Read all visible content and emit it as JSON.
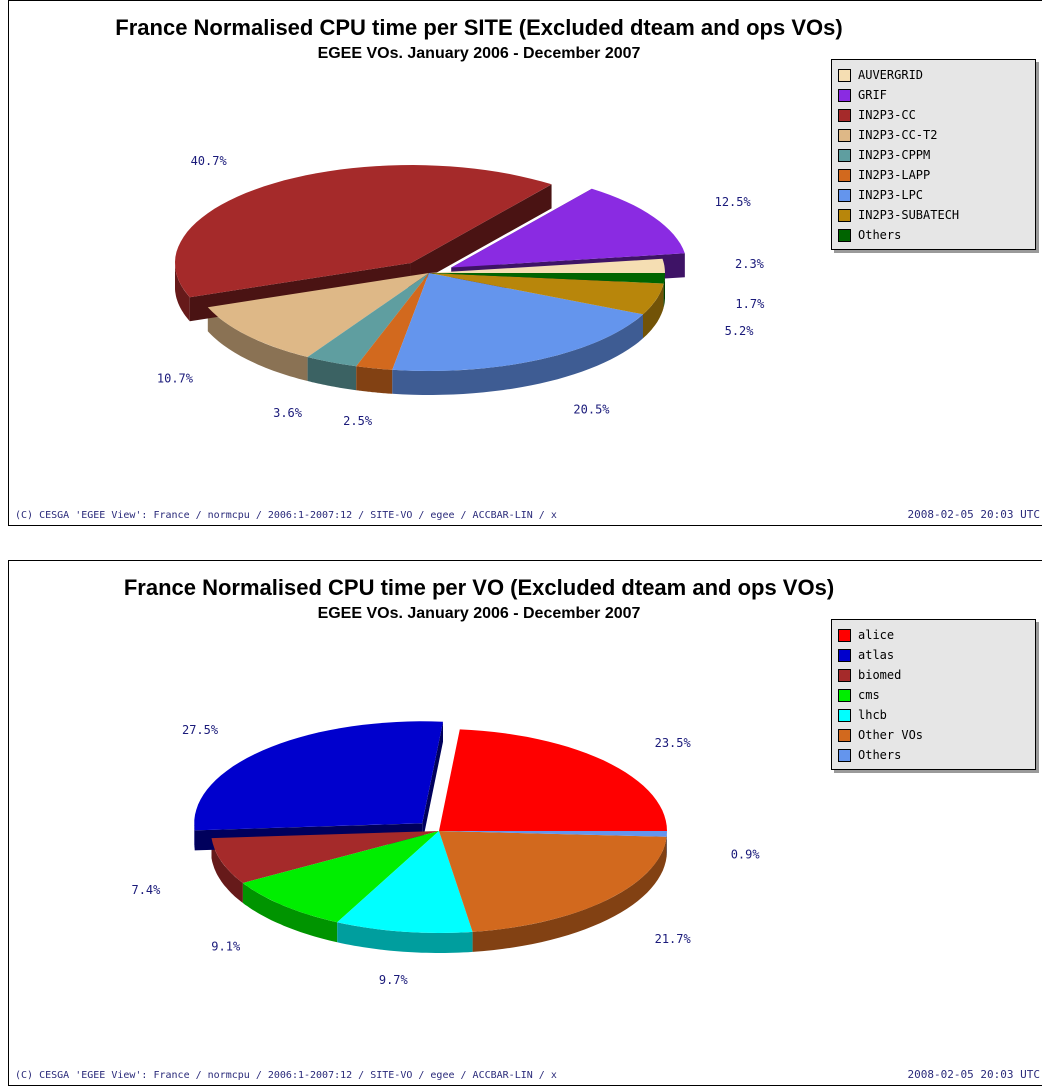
{
  "chart_data": [
    {
      "type": "pie",
      "title": "France Normalised CPU time per SITE (Excluded dteam and ops VOs)",
      "subtitle": "EGEE VOs. January 2006 - December 2007",
      "legend_position": "top-right",
      "slices": [
        {
          "label": "AUVERGRID",
          "value": 2.3,
          "pct_label": "2.3%",
          "color": "#f5deb3"
        },
        {
          "label": "GRIF",
          "value": 12.5,
          "pct_label": "12.5%",
          "color": "#8a2be2"
        },
        {
          "label": "IN2P3-CC",
          "value": 40.7,
          "pct_label": "40.7%",
          "color": "#a52a2a"
        },
        {
          "label": "IN2P3-CC-T2",
          "value": 10.7,
          "pct_label": "10.7%",
          "color": "#deb887"
        },
        {
          "label": "IN2P3-CPPM",
          "value": 3.6,
          "pct_label": "3.6%",
          "color": "#5f9ea0"
        },
        {
          "label": "IN2P3-LAPP",
          "value": 2.5,
          "pct_label": "2.5%",
          "color": "#d2691e"
        },
        {
          "label": "IN2P3-LPC",
          "value": 20.5,
          "pct_label": "20.5%",
          "color": "#6495ed"
        },
        {
          "label": "IN2P3-SUBATECH",
          "value": 5.2,
          "pct_label": "5.2%",
          "color": "#b8860b"
        },
        {
          "label": "Others",
          "value": 1.7,
          "pct_label": "1.7%",
          "color": "#006400"
        }
      ],
      "footer_left": "(C) CESGA 'EGEE View': France / normcpu / 2006:1-2007:12 / SITE-VO / egee / ACCBAR-LIN / x",
      "footer_right": "2008-02-05 20:03 UTC"
    },
    {
      "type": "pie",
      "title": "France Normalised CPU time per VO (Excluded dteam and ops VOs)",
      "subtitle": "EGEE VOs. January 2006 - December 2007",
      "legend_position": "top-right",
      "slices": [
        {
          "label": "alice",
          "value": 23.5,
          "pct_label": "23.5%",
          "color": "#ff0000"
        },
        {
          "label": "atlas",
          "value": 27.5,
          "pct_label": "27.5%",
          "color": "#0000cd"
        },
        {
          "label": "biomed",
          "value": 7.4,
          "pct_label": "7.4%",
          "color": "#a52a2a"
        },
        {
          "label": "cms",
          "value": 9.1,
          "pct_label": "9.1%",
          "color": "#00ee00"
        },
        {
          "label": "lhcb",
          "value": 9.7,
          "pct_label": "9.7%",
          "color": "#00ffff"
        },
        {
          "label": "Other VOs",
          "value": 21.7,
          "pct_label": "21.7%",
          "color": "#d2691e"
        },
        {
          "label": "Others",
          "value": 0.9,
          "pct_label": "0.9%",
          "color": "#6495ed"
        }
      ],
      "footer_left": "(C) CESGA 'EGEE View': France / normcpu / 2006:1-2007:12 / SITE-VO / egee / ACCBAR-LIN / x",
      "footer_right": "2008-02-05 20:03 UTC"
    }
  ]
}
